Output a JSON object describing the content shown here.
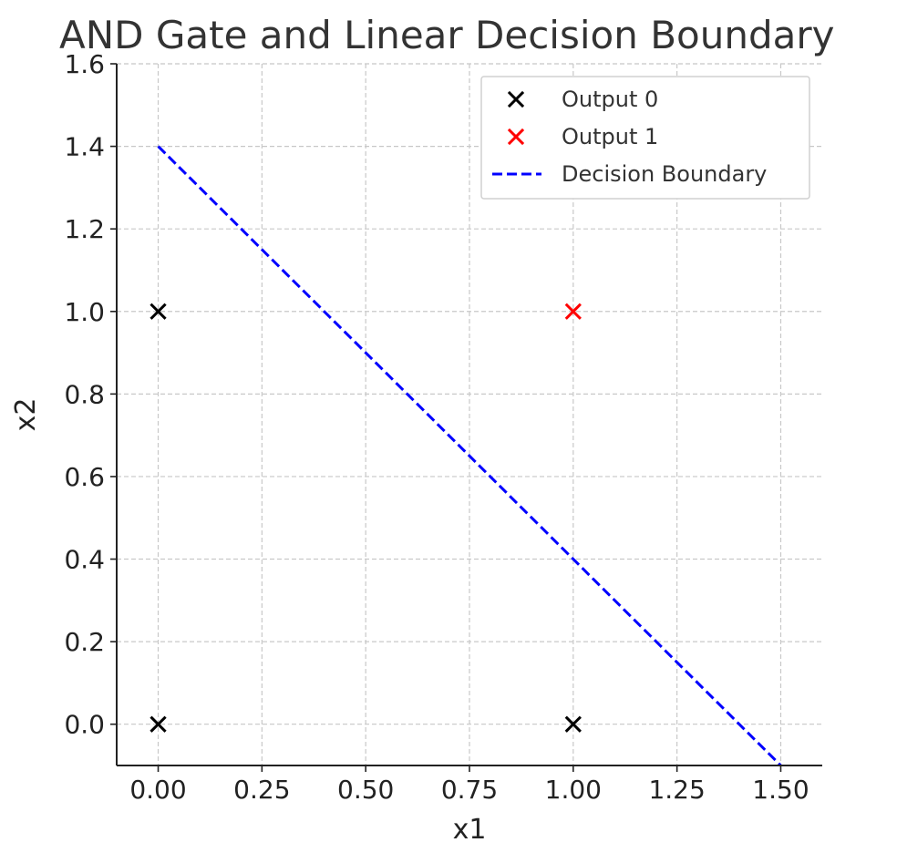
{
  "chart_data": {
    "type": "scatter",
    "title": "AND Gate and Linear Decision Boundary",
    "xlabel": "x1",
    "ylabel": "x2",
    "xlim": [
      -0.1,
      1.6
    ],
    "ylim": [
      -0.1,
      1.6
    ],
    "x_ticks": [
      0.0,
      0.25,
      0.5,
      0.75,
      1.0,
      1.25,
      1.5
    ],
    "x_tick_labels": [
      "0.00",
      "0.25",
      "0.50",
      "0.75",
      "1.00",
      "1.25",
      "1.50"
    ],
    "y_ticks": [
      0.0,
      0.2,
      0.4,
      0.6,
      0.8,
      1.0,
      1.2,
      1.4,
      1.6
    ],
    "y_tick_labels": [
      "0.0",
      "0.2",
      "0.4",
      "0.6",
      "0.8",
      "1.0",
      "1.2",
      "1.4",
      "1.6"
    ],
    "grid": true,
    "legend_position": "top-right",
    "series": [
      {
        "name": "Output 0",
        "kind": "scatter",
        "marker": "x",
        "color": "#000000",
        "points": [
          {
            "x": 0,
            "y": 0
          },
          {
            "x": 0,
            "y": 1
          },
          {
            "x": 1,
            "y": 0
          }
        ]
      },
      {
        "name": "Output 1",
        "kind": "scatter",
        "marker": "x",
        "color": "#ff0000",
        "points": [
          {
            "x": 1,
            "y": 1
          }
        ]
      },
      {
        "name": "Decision Boundary",
        "kind": "line",
        "style": "dashed",
        "color": "#0000ff",
        "points": [
          {
            "x": 0,
            "y": 1.4
          },
          {
            "x": 1.5,
            "y": -0.1
          }
        ]
      }
    ]
  }
}
